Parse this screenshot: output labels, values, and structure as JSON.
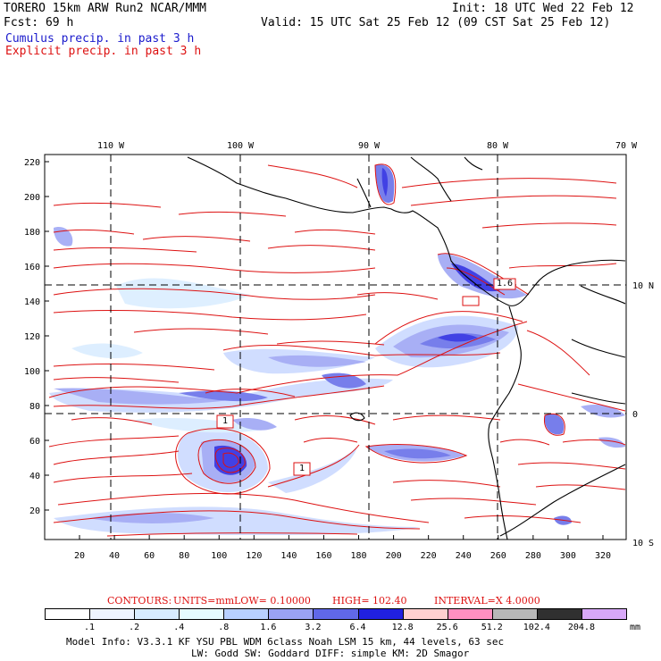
{
  "header": {
    "line1_left": "TORERO  15km ARW   Run2    NCAR/MMM",
    "line1_right": "Init: 18 UTC Wed 22 Feb 12",
    "line2_left": "Fcst:   69 h",
    "line2_right": "Valid: 15 UTC Sat 25 Feb 12 (09 CST Sat 25 Feb 12)",
    "legend_cumulus": "Cumulus precip. in past 3 h",
    "legend_explicit": "Explicit precip. in past 3 h"
  },
  "map": {
    "top_lon_labels": [
      "110 W",
      "100 W",
      "90 W",
      "80 W",
      "70 W"
    ],
    "right_lat_labels": [
      "10 N",
      "0",
      "10 S"
    ],
    "y_ticks": [
      "220",
      "200",
      "180",
      "160",
      "140",
      "120",
      "100",
      "80",
      "60",
      "40",
      "20"
    ],
    "x_ticks": [
      "20",
      "40",
      "60",
      "80",
      "100",
      "120",
      "140",
      "160",
      "180",
      "200",
      "220",
      "240",
      "260",
      "280",
      "300",
      "320"
    ],
    "contour_labels": [
      "1",
      "1",
      "1.6"
    ],
    "colors": {
      "contour": "#dd1111",
      "grid": "#000000",
      "coast": "#000000"
    }
  },
  "contours_info": {
    "label": "CONTOURS:",
    "units": "UNITS=mm",
    "low": "LOW= 0.10000",
    "high": "HIGH=  102.40",
    "interval": "INTERVAL=X  4.0000"
  },
  "colorbar": {
    "labels": [
      ".1",
      ".2",
      ".4",
      ".8",
      "1.6",
      "3.2",
      "6.4",
      "12.8",
      "25.6",
      "51.2",
      "102.4",
      "204.8"
    ],
    "unit": "mm",
    "colors": [
      "#ffffff",
      "#eef4ff",
      "#d8ecff",
      "#e6fbff",
      "#b8d0ff",
      "#9aa2f4",
      "#6068e8",
      "#2020e0",
      "#ffd0d0",
      "#ff90c0",
      "#b8b8b8",
      "#303030",
      "#d8a8f8"
    ]
  },
  "footer": {
    "line1": "Model Info: V3.3.1   KF    YSU PBL  WDM 6class  Noah LSM  15 km,   44 levels,   63 sec",
    "line2": "LW: Godd SW: Goddard DIFF: simple KM: 2D Smagor"
  }
}
